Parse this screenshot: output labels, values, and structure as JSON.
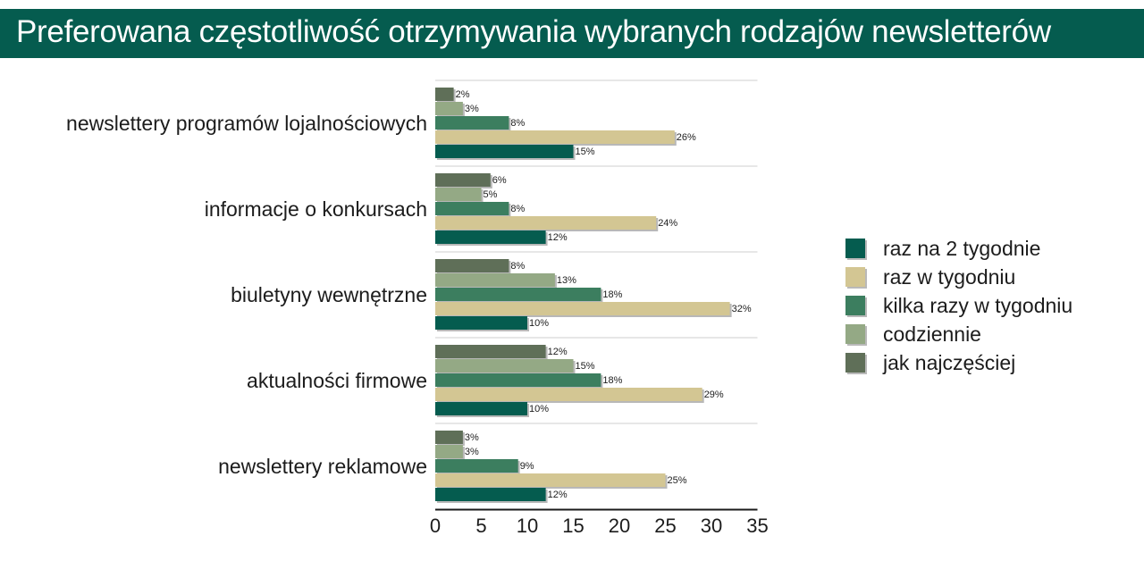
{
  "title": "Preferowana częstotliwość otrzymywania wybranych rodzajów newsletterów",
  "colors": {
    "title_bg": "#055c4f",
    "raz_na_2_tygodnie": "#055c4f",
    "raz_w_tygodniu": "#d3c693",
    "kilka_razy_w_tygodniu": "#3c7e5f",
    "codziennie": "#94a985",
    "jak_najczesciej": "#5f6f58"
  },
  "chart_data": {
    "type": "bar",
    "orientation": "horizontal",
    "categories": [
      "newslettery programów lojalnościowych",
      "informacje o konkursach",
      "biuletyny wewnętrzne",
      "aktualności firmowe",
      "newslettery reklamowe"
    ],
    "series": [
      {
        "name": "raz na 2 tygodnie",
        "color": "#055c4f",
        "values": [
          15,
          12,
          10,
          10,
          12
        ],
        "labels": [
          "15%",
          "12%",
          "10%",
          "10%",
          "12%"
        ]
      },
      {
        "name": "raz w tygodniu",
        "color": "#d3c693",
        "values": [
          26,
          24,
          32,
          29,
          25
        ],
        "labels": [
          "26%",
          "24%",
          "32%",
          "29%",
          "25%"
        ]
      },
      {
        "name": "kilka razy w tygodniu",
        "color": "#3c7e5f",
        "values": [
          8,
          8,
          18,
          18,
          9
        ],
        "labels": [
          "8%",
          "8%",
          "18%",
          "18%",
          "9%"
        ]
      },
      {
        "name": "codziennie",
        "color": "#94a985",
        "values": [
          3,
          5,
          13,
          15,
          3
        ],
        "labels": [
          "3%",
          "5%",
          "13%",
          "15%",
          "3%"
        ]
      },
      {
        "name": "jak najczęściej",
        "color": "#5f6f58",
        "values": [
          2,
          6,
          8,
          12,
          3
        ],
        "labels": [
          "2%",
          "6%",
          "8%",
          "12%",
          "3%"
        ]
      }
    ],
    "xlim": [
      0,
      35
    ],
    "xticks": [
      "0",
      "5",
      "10",
      "15",
      "20",
      "25",
      "30",
      "35"
    ],
    "grid": true,
    "legend_position": "right"
  },
  "legend": [
    {
      "label": "raz na 2 tygodnie",
      "color": "#055c4f"
    },
    {
      "label": "raz w tygodniu",
      "color": "#d3c693"
    },
    {
      "label": "kilka razy w tygodniu",
      "color": "#3c7e5f"
    },
    {
      "label": "codziennie",
      "color": "#94a985"
    },
    {
      "label": "jak najczęściej",
      "color": "#5f6f58"
    }
  ]
}
